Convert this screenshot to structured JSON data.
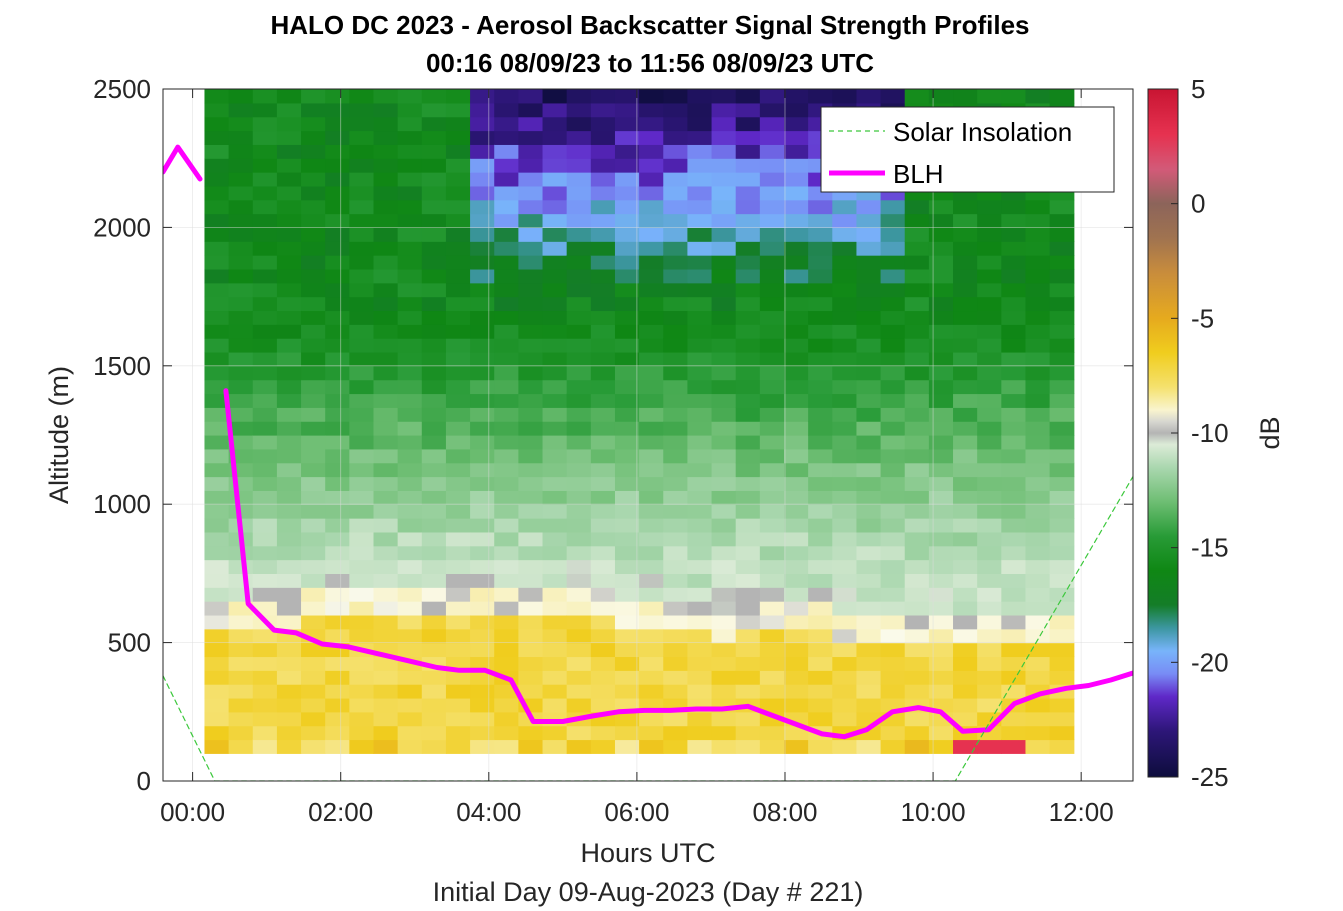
{
  "chart_data": {
    "type": "heatmap",
    "title": "HALO DC 2023 - Aerosol Backscatter Signal Strength Profiles",
    "subtitle": "00:16 08/09/23 to 11:56 08/09/23  UTC",
    "xlabel": "Hours UTC",
    "xlabel2": "Initial Day 09-Aug-2023 (Day # 221)",
    "ylabel": "Altitude (m)",
    "colorbar_label": "dB",
    "xlim": [
      -0.4,
      12.7
    ],
    "ylim": [
      0,
      2500
    ],
    "clim": [
      -25,
      5
    ],
    "x_ticks": [
      0,
      2,
      4,
      6,
      8,
      10,
      12
    ],
    "x_tick_labels": [
      "00:00",
      "02:00",
      "04:00",
      "06:00",
      "08:00",
      "10:00",
      "12:00"
    ],
    "y_ticks": [
      0,
      500,
      1000,
      1500,
      2000,
      2500
    ],
    "y_tick_labels": [
      "0",
      "500",
      "1000",
      "1500",
      "2000",
      "2500"
    ],
    "colorbar_ticks": [
      5,
      0,
      -5,
      -10,
      -15,
      -20,
      -25
    ],
    "colorbar_tick_labels": [
      "5",
      "0",
      "-5",
      "-10",
      "-15",
      "-20",
      "-25"
    ],
    "grid": true,
    "legend_position": "top-right",
    "legend": [
      {
        "label": "Solar Insolation",
        "color": "#3CC83C",
        "style": "dashed"
      },
      {
        "label": "BLH",
        "color": "#FF00FF",
        "style": "solid"
      }
    ],
    "heatmap": {
      "x_start": 0.16,
      "x_end": 11.9,
      "y_start": 100,
      "y_end": 2500,
      "altitude_bins": 48,
      "time_columns": 36,
      "description_of_values": "dB signal strength; approx -8 near surface rising to -25 aloft"
    },
    "series": [
      {
        "name": "BLH",
        "color": "#FF00FF",
        "segments": [
          {
            "x": [
              -0.4,
              -0.2,
              0.1
            ],
            "y": [
              2200,
              2290,
              2175
            ]
          },
          {
            "x": [
              0.45,
              0.75,
              1.1,
              1.4,
              1.75,
              2.1,
              2.5,
              2.9,
              3.3,
              3.6,
              3.95,
              4.3,
              4.6,
              5.0,
              5.4,
              5.75,
              6.1,
              6.45,
              6.8,
              7.15,
              7.5,
              7.85,
              8.2,
              8.5,
              8.8,
              9.1,
              9.45,
              9.8,
              10.1,
              10.4,
              10.75,
              11.1,
              11.45,
              11.8,
              12.1,
              12.4,
              12.7
            ],
            "y": [
              1410,
              640,
              545,
              535,
              495,
              485,
              460,
              435,
              410,
              400,
              400,
              365,
              215,
              215,
              235,
              250,
              255,
              255,
              260,
              260,
              270,
              235,
              200,
              170,
              160,
              185,
              250,
              265,
              250,
              180,
              185,
              280,
              315,
              335,
              345,
              365,
              390
            ]
          }
        ]
      },
      {
        "name": "Solar Insolation",
        "color": "#3CC83C",
        "segments": [
          {
            "x": [
              -0.4,
              0.3,
              10.3,
              12.7
            ],
            "y": [
              380,
              0,
              0,
              1100
            ]
          }
        ]
      }
    ]
  }
}
